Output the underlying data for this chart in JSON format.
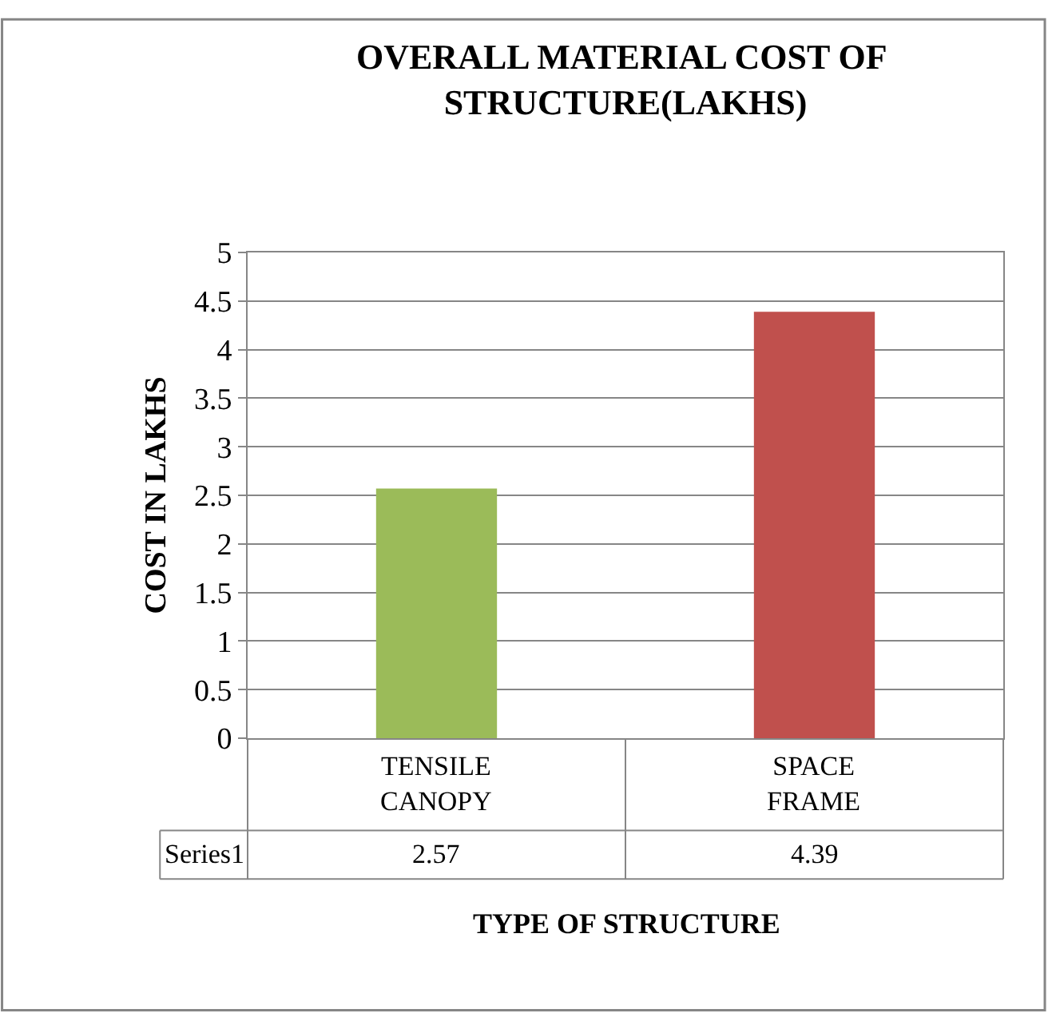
{
  "chart_data": {
    "type": "bar",
    "title": "OVERALL MATERIAL COST OF STRUCTURE(LAKHS)",
    "xlabel": "TYPE OF STRUCTURE",
    "ylabel": "COST IN LAKHS",
    "categories": [
      "TENSILE CANOPY",
      "SPACE FRAME"
    ],
    "series": [
      {
        "name": "Series1",
        "values": [
          2.57,
          4.39
        ],
        "colors": [
          "#9bbb59",
          "#c0504d"
        ]
      }
    ],
    "ylim": [
      0,
      5
    ],
    "yticks": [
      0,
      0.5,
      1,
      1.5,
      2,
      2.5,
      3,
      3.5,
      4,
      4.5,
      5
    ],
    "grid": "y",
    "legend": false,
    "data_labels": true
  }
}
